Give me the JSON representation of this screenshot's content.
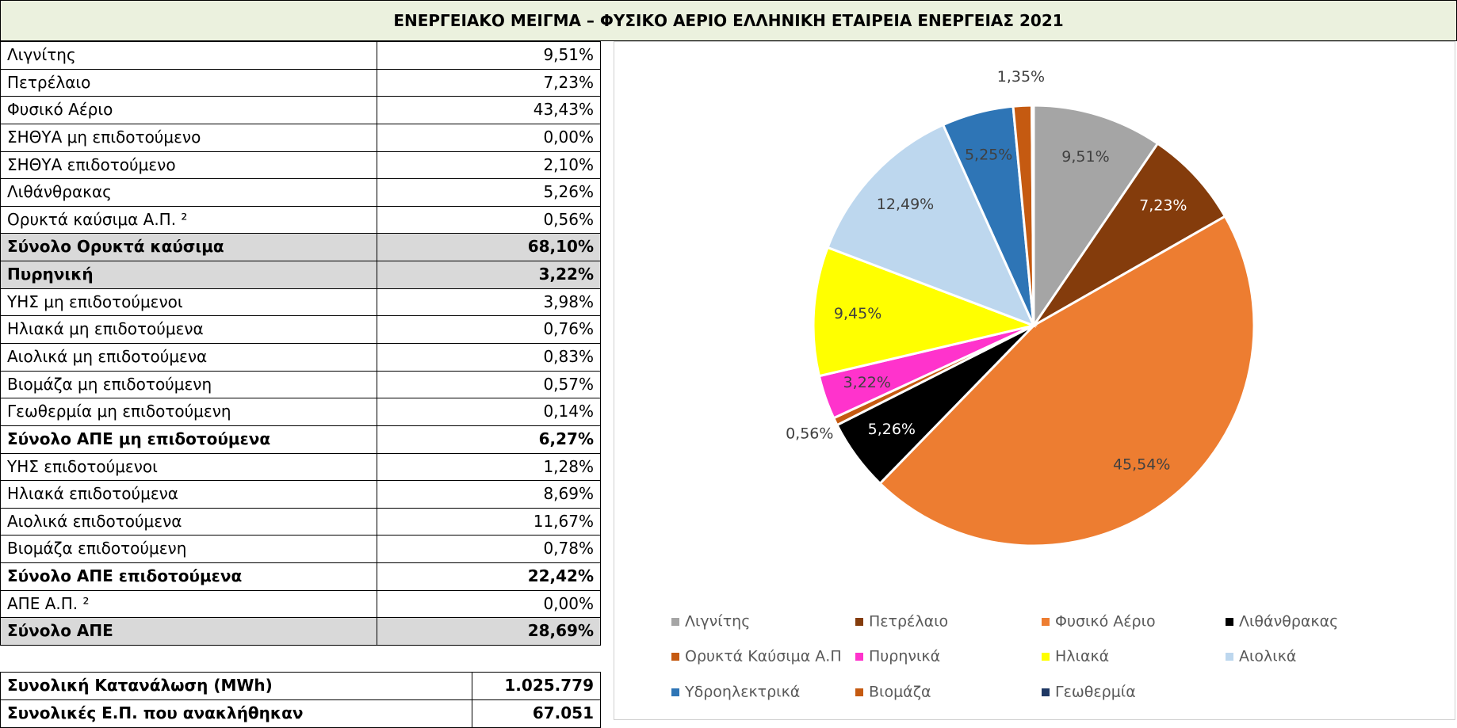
{
  "title": "ΕΝΕΡΓΕΙΑΚΟ ΜΕΙΓΜΑ – ΦΥΣΙΚΟ ΑΕΡΙΟ ΕΛΛΗΝΙΚΗ ΕΤΑΙΡΕΙΑ ΕΝΕΡΓΕΙΑΣ  2021",
  "table": {
    "rows": [
      [
        "Λιγνίτης",
        "9,51%"
      ],
      [
        "Πετρέλαιο",
        "7,23%"
      ],
      [
        "Φυσικό Αέριο",
        "43,43%"
      ],
      [
        "ΣΗΘΥΑ μη επιδοτούμενο",
        "0,00%"
      ],
      [
        "ΣΗΘΥΑ επιδοτούμενο",
        "2,10%"
      ],
      [
        "Λιθάνθρακας",
        "5,26%"
      ],
      [
        "Ορυκτά καύσιμα Α.Π. ²",
        "0,56%"
      ],
      [
        "Σύνολο Ορυκτά καύσιμα",
        "68,10%"
      ],
      [
        "Πυρηνική",
        "3,22%"
      ],
      [
        "ΥΗΣ μη επιδοτούμενοι",
        "3,98%"
      ],
      [
        "Ηλιακά μη επιδοτούμενα",
        "0,76%"
      ],
      [
        "Αιολικά μη επιδοτούμενα",
        "0,83%"
      ],
      [
        "Βιομάζα μη επιδοτούμενη",
        "0,57%"
      ],
      [
        "Γεωθερμία μη επιδοτούμενη",
        "0,14%"
      ],
      [
        "Σύνολο ΑΠΕ μη επιδοτούμενα",
        "6,27%"
      ],
      [
        "ΥΗΣ επιδοτούμενοι",
        "1,28%"
      ],
      [
        "Ηλιακά επιδοτούμενα",
        "8,69%"
      ],
      [
        "Αιολικά επιδοτούμενα",
        "11,67%"
      ],
      [
        "Βιομάζα επιδοτούμενη",
        "0,78%"
      ],
      [
        "Σύνολο ΑΠΕ επιδοτούμενα",
        "22,42%"
      ],
      [
        "ΑΠΕ Α.Π. ²",
        "0,00%"
      ],
      [
        "Σύνολο ΑΠΕ",
        "28,69%"
      ]
    ]
  },
  "totals": {
    "rows": [
      [
        "Συνολική Κατανάλωση (MWh)",
        "1.025.779"
      ],
      [
        "Συνολικές Ε.Π. που ανακλήθηκαν",
        "67.051"
      ]
    ]
  },
  "chart_data": {
    "type": "pie",
    "categories": [
      "Λιγνίτης",
      "Πετρέλαιο",
      "Φυσικό Αέριο",
      "Λιθάνθρακας",
      "Ορυκτά Καύσιμα Α.Π",
      "Πυρηνικά",
      "Ηλιακά",
      "Αιολικά",
      "Υδροηλεκτρικά",
      "Βιομάζα",
      "Γεωθερμία"
    ],
    "values": [
      9.51,
      7.23,
      45.54,
      5.26,
      0.56,
      3.22,
      9.45,
      12.49,
      5.25,
      1.35,
      0.14
    ],
    "value_labels": [
      "9,51%",
      "7,23%",
      "45,54%",
      "5,26%",
      "0,56%",
      "3,22%",
      "9,45%",
      "12,49%",
      "5,25%",
      "1,35%",
      null
    ],
    "colors": [
      "#a5a5a5",
      "#843c0c",
      "#ed7d31",
      "#000000",
      "#c55a11",
      "#ff33cc",
      "#ffff00",
      "#bdd7ee",
      "#2e75b6",
      "#c55a11",
      "#1f3864"
    ],
    "legend": "bottom"
  }
}
